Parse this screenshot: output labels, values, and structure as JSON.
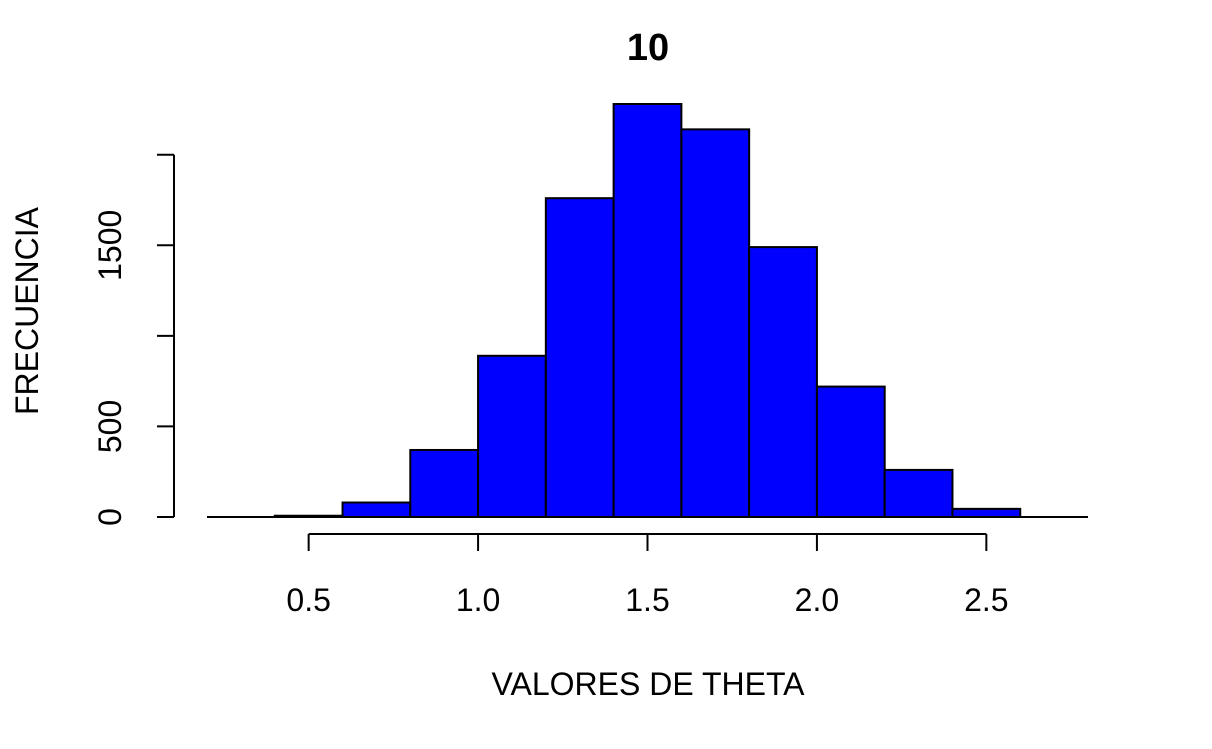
{
  "chart_data": {
    "type": "bar",
    "title": "10",
    "xlabel": "VALORES DE THETA",
    "ylabel": "FRECUENCIA",
    "bar_color": "#0000ff",
    "bin_edges": [
      0.4,
      0.6,
      0.8,
      1.0,
      1.2,
      1.4,
      1.6,
      1.8,
      2.0,
      2.2,
      2.4,
      2.6
    ],
    "values": [
      7,
      80,
      370,
      890,
      1760,
      2280,
      2140,
      1490,
      720,
      260,
      45
    ],
    "x_ticks": [
      0.5,
      1.0,
      1.5,
      2.0,
      2.5
    ],
    "x_tick_labels": [
      "0.5",
      "1.0",
      "1.5",
      "2.0",
      "2.5"
    ],
    "y_ticks": [
      0,
      500,
      1000,
      1500,
      2000
    ],
    "y_tick_labels": [
      "0",
      "500",
      "",
      "1500",
      ""
    ],
    "xlim": [
      0.2,
      2.8
    ],
    "ylim": [
      0,
      2280
    ],
    "grid": false
  }
}
